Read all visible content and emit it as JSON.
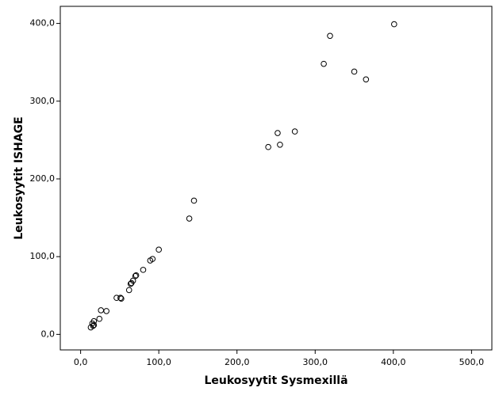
{
  "chart_data": {
    "type": "scatter",
    "x_label": "Leukosyytit Sysmexillä",
    "y_label": "Leukosyytit ISHAGE",
    "xlim": [
      -26,
      526
    ],
    "ylim": [
      -20,
      422
    ],
    "xticks": [
      {
        "value": 0,
        "label": "0,0"
      },
      {
        "value": 100,
        "label": "100,0"
      },
      {
        "value": 200,
        "label": "200,0"
      },
      {
        "value": 300,
        "label": "300,0"
      },
      {
        "value": 400,
        "label": "400,0"
      },
      {
        "value": 500,
        "label": "500,0"
      }
    ],
    "yticks": [
      {
        "value": 0,
        "label": "0,0"
      },
      {
        "value": 100,
        "label": "100,0"
      },
      {
        "value": 200,
        "label": "200,0"
      },
      {
        "value": 300,
        "label": "300,0"
      },
      {
        "value": 400,
        "label": "400,0"
      }
    ],
    "color": "#000000",
    "x": [
      401,
      319,
      311,
      350,
      365,
      274,
      252,
      255,
      240,
      145,
      139,
      100,
      92,
      89,
      80,
      71,
      70,
      67,
      65,
      64,
      62,
      46,
      51,
      52,
      26,
      33,
      24,
      17,
      15,
      17,
      16,
      13
    ],
    "values": [
      399,
      384,
      348,
      338,
      328,
      261,
      259,
      244,
      241,
      172,
      149,
      109,
      97,
      95,
      83,
      76,
      75,
      69,
      66,
      65,
      57,
      47,
      47,
      46,
      31,
      30,
      20,
      17,
      14,
      12,
      11,
      9
    ]
  }
}
